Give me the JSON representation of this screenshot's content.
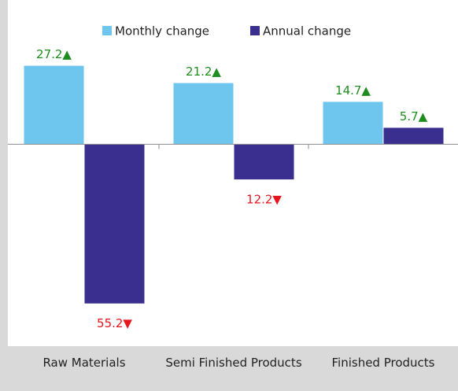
{
  "chart_data": {
    "type": "bar",
    "categories": [
      "Raw Materials",
      "Semi Finished Products",
      "Finished Products"
    ],
    "series": [
      {
        "name": "Monthly change",
        "color": "#6ec6ee",
        "values": [
          27.2,
          21.2,
          14.7
        ],
        "value_labels": [
          "27.2▲",
          "21.2▲",
          "14.7▲"
        ]
      },
      {
        "name": "Annual change",
        "color": "#3a2f8f",
        "values": [
          -55.2,
          -12.2,
          5.7
        ],
        "value_labels": [
          "55.2▼",
          "12.2▼",
          "5.7▲"
        ]
      }
    ],
    "ylim": [
      -70,
      50
    ],
    "label_colors": {
      "up": "#1e8c1e",
      "down": "#e8141e"
    },
    "legend": "top"
  }
}
